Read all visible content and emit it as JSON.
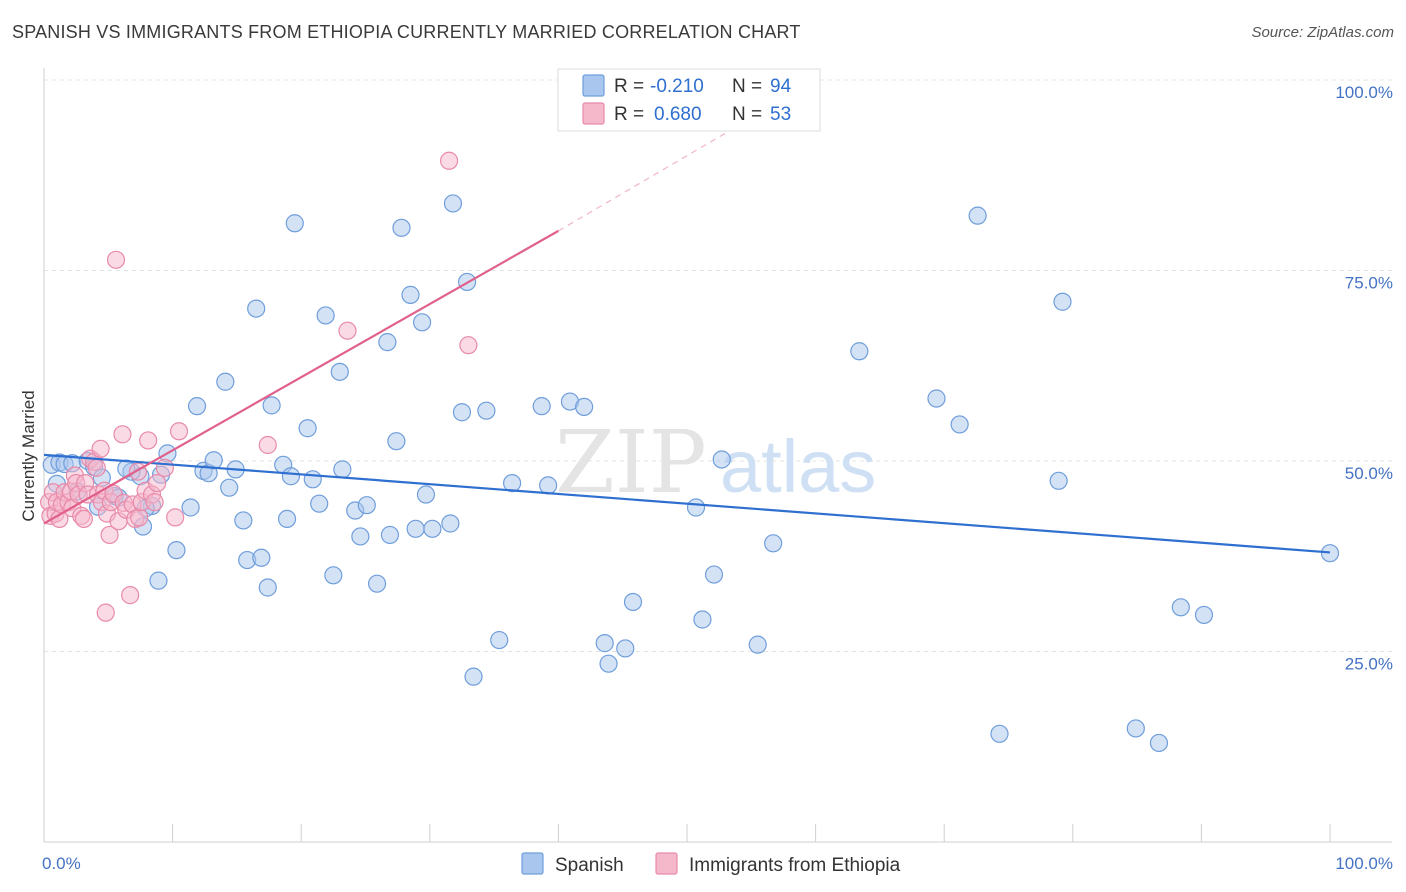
{
  "title": "SPANISH VS IMMIGRANTS FROM ETHIOPIA CURRENTLY MARRIED CORRELATION CHART",
  "source": "Source: ZipAtlas.com",
  "watermark": {
    "zip": "ZIP",
    "atlas": "atlas"
  },
  "colors": {
    "blue_fill": "#a9c6ee",
    "blue_stroke": "#6f9edb",
    "blue_line": "#2e6fd0",
    "pink_fill": "#f5b8cb",
    "pink_stroke": "#e88aa9",
    "pink_line": "#e0608b",
    "grid": "#e3e3e3",
    "axis_label": "#4472c4"
  },
  "chart_data": {
    "type": "scatter",
    "title": "SPANISH VS IMMIGRANTS FROM ETHIOPIA CURRENTLY MARRIED CORRELATION CHART",
    "xlabel": "",
    "ylabel": "Currently Married",
    "xlim": [
      0,
      100
    ],
    "ylim": [
      0,
      100
    ],
    "x_tick_labels": [
      "0.0%",
      "100.0%"
    ],
    "y_ticks": [
      25,
      50,
      75,
      100
    ],
    "y_tick_labels": [
      "25.0%",
      "50.0%",
      "75.0%",
      "100.0%"
    ],
    "grid": "horizontal dashed",
    "legend": {
      "placement": "top-center",
      "entries": [
        {
          "series": "Spanish",
          "r_label": "R =",
          "r_value": "-0.210",
          "n_label": "N =",
          "n_value": "94"
        },
        {
          "series": "Immigrants from Ethiopia",
          "r_label": "R =",
          "r_value": "0.680",
          "n_label": "N =",
          "n_value": "53"
        }
      ]
    },
    "series": [
      {
        "name": "Spanish",
        "color": "blue",
        "trend": {
          "x": [
            0,
            100
          ],
          "y": [
            50.8,
            38.0
          ],
          "dashed_extension": null
        },
        "points": [
          [
            0.6,
            49.5
          ],
          [
            1.2,
            49.8
          ],
          [
            1.6,
            49.6
          ],
          [
            2.2,
            49.7
          ],
          [
            3.4,
            50
          ],
          [
            3.9,
            49.2
          ],
          [
            4.5,
            47.8
          ],
          [
            4.2,
            44
          ],
          [
            5.5,
            45.4
          ],
          [
            5.8,
            45.2
          ],
          [
            7.5,
            48
          ],
          [
            6.8,
            48.6
          ],
          [
            8.4,
            44.1
          ],
          [
            7.9,
            43.8
          ],
          [
            7.7,
            41.4
          ],
          [
            9.6,
            51
          ],
          [
            10.3,
            38.3
          ],
          [
            8.9,
            34.3
          ],
          [
            11.4,
            43.9
          ],
          [
            11.9,
            57.2
          ],
          [
            12.4,
            48.7
          ],
          [
            12.8,
            48.4
          ],
          [
            13.2,
            50.1
          ],
          [
            14.1,
            60.4
          ],
          [
            14.4,
            46.5
          ],
          [
            14.9,
            48.9
          ],
          [
            15.5,
            42.2
          ],
          [
            15.8,
            37
          ],
          [
            16.5,
            70
          ],
          [
            16.9,
            37.3
          ],
          [
            17.4,
            33.4
          ],
          [
            17.7,
            57.3
          ],
          [
            18.6,
            49.5
          ],
          [
            18.9,
            42.4
          ],
          [
            19.2,
            48
          ],
          [
            19.5,
            81.2
          ],
          [
            20.5,
            54.3
          ],
          [
            20.9,
            47.6
          ],
          [
            21.4,
            44.4
          ],
          [
            21.9,
            69.1
          ],
          [
            22.5,
            35
          ],
          [
            23,
            61.7
          ],
          [
            23.2,
            48.9
          ],
          [
            24.2,
            43.5
          ],
          [
            24.6,
            40.1
          ],
          [
            25.1,
            44.2
          ],
          [
            25.9,
            33.9
          ],
          [
            26.7,
            65.6
          ],
          [
            26.9,
            40.3
          ],
          [
            27.4,
            52.6
          ],
          [
            27.8,
            80.6
          ],
          [
            28.5,
            71.8
          ],
          [
            28.9,
            41.1
          ],
          [
            29.4,
            68.2
          ],
          [
            29.7,
            45.6
          ],
          [
            30.2,
            41.1
          ],
          [
            31.6,
            41.8
          ],
          [
            31.8,
            83.8
          ],
          [
            32.5,
            56.4
          ],
          [
            32.9,
            73.5
          ],
          [
            34.4,
            56.6
          ],
          [
            35.4,
            26.5
          ],
          [
            33.4,
            21.7
          ],
          [
            36.4,
            47.1
          ],
          [
            39.2,
            46.8
          ],
          [
            38.7,
            57.2
          ],
          [
            40.9,
            57.8
          ],
          [
            42,
            57.1
          ],
          [
            43.6,
            26.1
          ],
          [
            43.9,
            23.4
          ],
          [
            45.2,
            25.4
          ],
          [
            45.8,
            31.5
          ],
          [
            50.7,
            43.9
          ],
          [
            51.2,
            29.2
          ],
          [
            52.7,
            50.2
          ],
          [
            52.1,
            35.1
          ],
          [
            55.5,
            25.9
          ],
          [
            56.7,
            39.2
          ],
          [
            63.4,
            64.4
          ],
          [
            69.4,
            58.2
          ],
          [
            71.2,
            54.8
          ],
          [
            72.6,
            82.2
          ],
          [
            74.3,
            14.2
          ],
          [
            78.9,
            47.4
          ],
          [
            79.2,
            70.9
          ],
          [
            84.9,
            14.9
          ],
          [
            88.4,
            30.8
          ],
          [
            86.7,
            13
          ],
          [
            90.2,
            29.8
          ],
          [
            100,
            37.9
          ],
          [
            1,
            47
          ],
          [
            2.6,
            46
          ],
          [
            6.4,
            49
          ],
          [
            9.1,
            48.2
          ]
        ]
      },
      {
        "name": "Immigrants from Ethiopia",
        "color": "pink",
        "trend": {
          "x": [
            0,
            40
          ],
          "y": [
            41.8,
            80.2
          ],
          "dashed_extension": {
            "x": [
              40,
              55
            ],
            "y": [
              80.2,
              95
            ]
          }
        },
        "points": [
          [
            0.4,
            44.6
          ],
          [
            0.5,
            42.8
          ],
          [
            0.7,
            45.9
          ],
          [
            0.9,
            43.1
          ],
          [
            1,
            44.6
          ],
          [
            1.2,
            42.4
          ],
          [
            1.4,
            44.3
          ],
          [
            1.6,
            45.9
          ],
          [
            1.9,
            44.6
          ],
          [
            2.1,
            46
          ],
          [
            2.2,
            43.8
          ],
          [
            2.4,
            48.1
          ],
          [
            2.5,
            47.1
          ],
          [
            2.7,
            45.6
          ],
          [
            2.9,
            42.8
          ],
          [
            3.1,
            42.4
          ],
          [
            3.2,
            47.1
          ],
          [
            3.4,
            45.6
          ],
          [
            3.6,
            50.3
          ],
          [
            3.9,
            49.9
          ],
          [
            4.1,
            49.1
          ],
          [
            4.2,
            45.6
          ],
          [
            4.4,
            51.6
          ],
          [
            4.5,
            44.6
          ],
          [
            4.7,
            46.1
          ],
          [
            4.9,
            43.1
          ],
          [
            5.1,
            40.3
          ],
          [
            5.2,
            44.6
          ],
          [
            5.4,
            45.7
          ],
          [
            5.6,
            76.4
          ],
          [
            5.8,
            42.1
          ],
          [
            6.1,
            53.5
          ],
          [
            6.2,
            44.5
          ],
          [
            6.4,
            43.6
          ],
          [
            6.7,
            32.4
          ],
          [
            6.9,
            44.3
          ],
          [
            7.1,
            42.4
          ],
          [
            7.3,
            48.6
          ],
          [
            7.4,
            42.6
          ],
          [
            7.6,
            44.6
          ],
          [
            7.9,
            46.1
          ],
          [
            8.1,
            52.7
          ],
          [
            8.4,
            45.6
          ],
          [
            8.6,
            44.6
          ],
          [
            8.8,
            47.1
          ],
          [
            9.4,
            49.1
          ],
          [
            10.2,
            42.6
          ],
          [
            10.5,
            53.9
          ],
          [
            17.4,
            52.1
          ],
          [
            23.6,
            67.1
          ],
          [
            31.5,
            89.4
          ],
          [
            33,
            65.2
          ],
          [
            4.8,
            30.1
          ]
        ]
      }
    ]
  },
  "bottom_legend": [
    {
      "label": "Spanish",
      "color": "blue"
    },
    {
      "label": "Immigrants from Ethiopia",
      "color": "pink"
    }
  ]
}
